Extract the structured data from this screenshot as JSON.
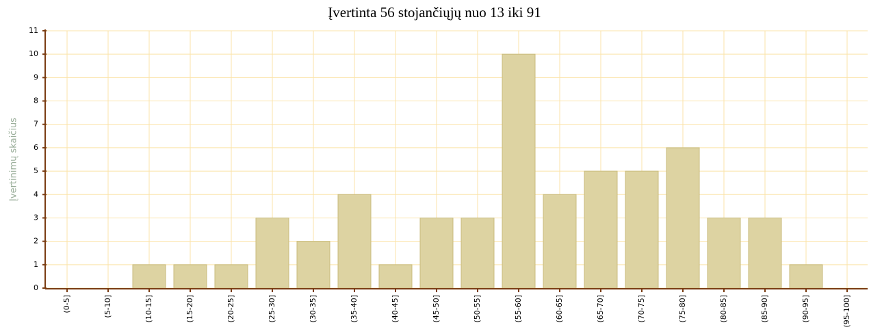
{
  "chart_data": {
    "type": "bar",
    "title": "Įvertinta 56 stojančiųjų nuo 13 iki 91",
    "y_label": "Įvertinimų skaičius",
    "categories": [
      "(0-5]",
      "(5-10]",
      "(10-15]",
      "(15-20]",
      "(20-25]",
      "(25-30]",
      "(30-35]",
      "(35-40]",
      "(40-45]",
      "(45-50]",
      "(50-55]",
      "(55-60]",
      "(60-65]",
      "(65-70]",
      "(70-75]",
      "(75-80]",
      "(80-85]",
      "(85-90]",
      "(90-95]",
      "(95-100]"
    ],
    "values": [
      0,
      0,
      1,
      1,
      1,
      3,
      2,
      4,
      1,
      3,
      3,
      10,
      4,
      5,
      5,
      6,
      3,
      3,
      1,
      0
    ],
    "color": "#ddd3a2",
    "ylim": [
      0,
      11
    ],
    "yticks": [
      0,
      1,
      2,
      3,
      4,
      5,
      6,
      7,
      8,
      9,
      10,
      11
    ],
    "grid": true
  }
}
